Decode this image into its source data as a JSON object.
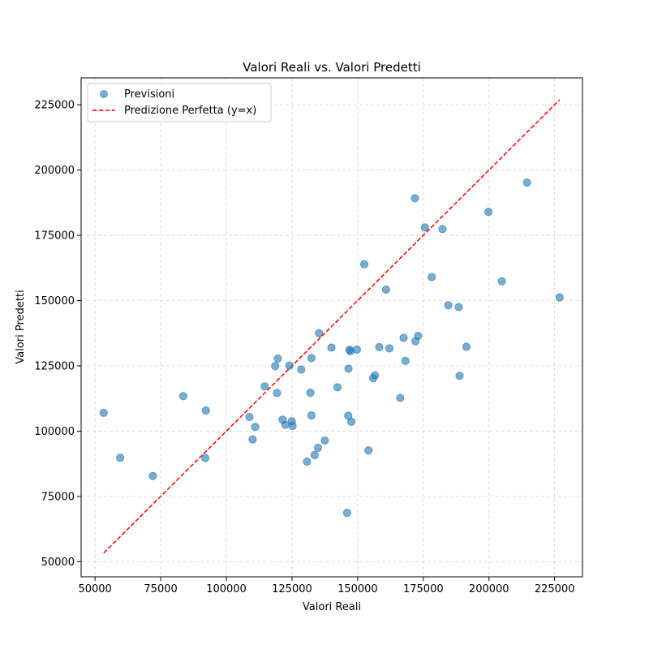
{
  "chart_data": {
    "type": "scatter",
    "title": "Valori Reali vs. Valori Predetti",
    "xlabel": "Valori Reali",
    "ylabel": "Valori Predetti",
    "xlim": [
      44700,
      235600
    ],
    "ylim": [
      44200,
      235300
    ],
    "xticks": [
      50000,
      75000,
      100000,
      125000,
      150000,
      175000,
      200000,
      225000
    ],
    "yticks": [
      50000,
      75000,
      100000,
      125000,
      150000,
      175000,
      200000,
      225000
    ],
    "xtick_labels": [
      "50000",
      "75000",
      "100000",
      "125000",
      "150000",
      "175000",
      "200000",
      "225000"
    ],
    "ytick_labels": [
      "50000",
      "75000",
      "100000",
      "125000",
      "150000",
      "175000",
      "200000",
      "225000"
    ],
    "grid": true,
    "legend_position": "top-left",
    "series": [
      {
        "name": "Previsioni",
        "kind": "scatter",
        "color": "#1f77b4",
        "points": [
          [
            53300,
            107000
          ],
          [
            59600,
            89800
          ],
          [
            72000,
            82800
          ],
          [
            83600,
            113400
          ],
          [
            92000,
            89700
          ],
          [
            92200,
            107900
          ],
          [
            108800,
            105400
          ],
          [
            110000,
            96800
          ],
          [
            111000,
            101600
          ],
          [
            114600,
            117100
          ],
          [
            118600,
            124900
          ],
          [
            119300,
            114600
          ],
          [
            119600,
            127800
          ],
          [
            121400,
            104400
          ],
          [
            122500,
            102400
          ],
          [
            124000,
            125100
          ],
          [
            124900,
            103800
          ],
          [
            125200,
            102000
          ],
          [
            128500,
            123600
          ],
          [
            130700,
            88300
          ],
          [
            132000,
            114700
          ],
          [
            132400,
            106000
          ],
          [
            132400,
            128000
          ],
          [
            133600,
            90800
          ],
          [
            134900,
            93600
          ],
          [
            135300,
            137500
          ],
          [
            137500,
            96400
          ],
          [
            140000,
            132000
          ],
          [
            142300,
            116800
          ],
          [
            146000,
            68700
          ],
          [
            146400,
            105900
          ],
          [
            146500,
            123900
          ],
          [
            146900,
            131200
          ],
          [
            147200,
            130600
          ],
          [
            147600,
            103600
          ],
          [
            149700,
            131200
          ],
          [
            152500,
            163900
          ],
          [
            154100,
            92600
          ],
          [
            155900,
            120300
          ],
          [
            156600,
            121400
          ],
          [
            158200,
            132200
          ],
          [
            160800,
            154200
          ],
          [
            162100,
            131700
          ],
          [
            166200,
            112700
          ],
          [
            167500,
            135700
          ],
          [
            168200,
            126900
          ],
          [
            171800,
            189200
          ],
          [
            172000,
            134400
          ],
          [
            173000,
            136500
          ],
          [
            175600,
            178000
          ],
          [
            178200,
            159000
          ],
          [
            182300,
            177400
          ],
          [
            184500,
            148200
          ],
          [
            188500,
            147500
          ],
          [
            188800,
            121200
          ],
          [
            191400,
            132300
          ],
          [
            199800,
            184000
          ],
          [
            204900,
            157400
          ],
          [
            214500,
            195200
          ],
          [
            226900,
            151200
          ]
        ]
      },
      {
        "name": "Predizione Perfetta (y=x)",
        "kind": "line",
        "style": "dashed",
        "color": "#ff0000",
        "points": [
          [
            53300,
            53300
          ],
          [
            226900,
            226900
          ]
        ]
      }
    ]
  }
}
